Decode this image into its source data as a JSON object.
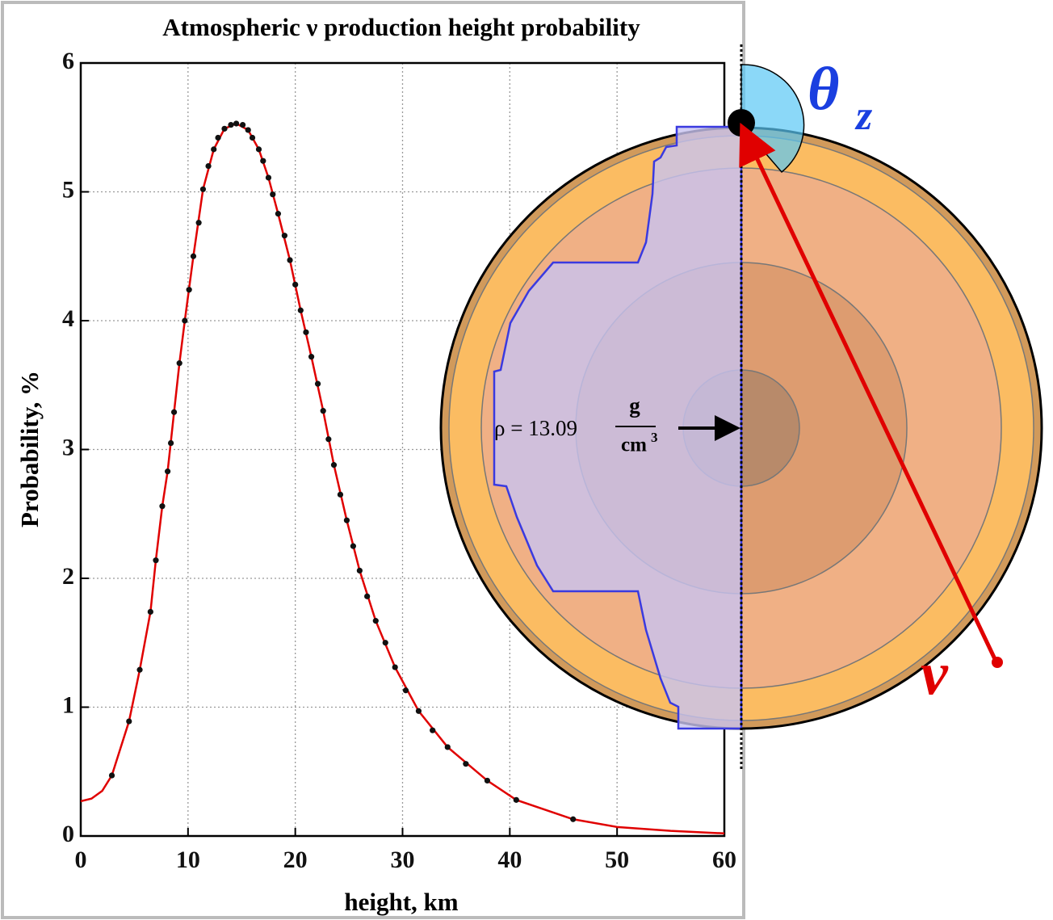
{
  "chart_data": {
    "type": "line",
    "title": "Atmospheric ν production height probability",
    "xlabel": "height, km",
    "ylabel": "Probability, %",
    "xlim": [
      0,
      60
    ],
    "ylim": [
      0,
      6
    ],
    "xticks": [
      0,
      10,
      20,
      30,
      40,
      50,
      60
    ],
    "yticks": [
      0,
      1,
      2,
      3,
      4,
      5,
      6
    ],
    "grid": true,
    "series": [
      {
        "style": "line",
        "color": "#e00000",
        "x": [
          0,
          1,
          2,
          2.9,
          4.5,
          5.5,
          6.5,
          7.0,
          7.6,
          8.1,
          8.7,
          9.2,
          9.7,
          10.5,
          11.4,
          12.4,
          13.4,
          14.5,
          15.6,
          16.6,
          17.5,
          18.4,
          19.5,
          20.5,
          21.5,
          22.6,
          23.6,
          24.8,
          26.0,
          27.5,
          29.3,
          31.5,
          34.2,
          37.9,
          40.6,
          45.9,
          50,
          55,
          60
        ],
        "values": [
          0.27,
          0.29,
          0.35,
          0.47,
          0.89,
          1.29,
          1.74,
          2.14,
          2.56,
          2.83,
          3.29,
          3.67,
          4.0,
          4.5,
          5.02,
          5.33,
          5.49,
          5.53,
          5.48,
          5.33,
          5.11,
          4.83,
          4.47,
          4.08,
          3.72,
          3.3,
          2.88,
          2.45,
          2.06,
          1.67,
          1.31,
          0.97,
          0.69,
          0.43,
          0.28,
          0.13,
          0.07,
          0.04,
          0.02
        ]
      },
      {
        "style": "points",
        "color": "#111111",
        "x": [
          2.9,
          4.5,
          5.5,
          6.5,
          7.0,
          7.6,
          8.1,
          8.4,
          8.7,
          9.2,
          9.7,
          10.1,
          10.5,
          11.0,
          11.4,
          11.9,
          12.4,
          12.8,
          13.4,
          14.0,
          14.5,
          15.1,
          15.6,
          16.0,
          16.6,
          17.0,
          17.5,
          17.9,
          18.4,
          19.0,
          19.5,
          20.0,
          20.5,
          21.0,
          21.5,
          22.1,
          22.6,
          23.1,
          23.6,
          24.2,
          24.8,
          25.4,
          26.0,
          26.7,
          27.5,
          28.4,
          29.3,
          30.3,
          31.5,
          32.8,
          34.2,
          35.9,
          37.9,
          40.6,
          45.9
        ],
        "values": [
          0.47,
          0.89,
          1.29,
          1.74,
          2.14,
          2.56,
          2.83,
          3.05,
          3.29,
          3.67,
          4.0,
          4.24,
          4.5,
          4.76,
          5.02,
          5.2,
          5.33,
          5.42,
          5.49,
          5.52,
          5.53,
          5.52,
          5.48,
          5.42,
          5.33,
          5.24,
          5.11,
          4.98,
          4.83,
          4.66,
          4.47,
          4.28,
          4.08,
          3.91,
          3.72,
          3.51,
          3.3,
          3.08,
          2.88,
          2.65,
          2.45,
          2.25,
          2.06,
          1.86,
          1.67,
          1.5,
          1.31,
          1.13,
          0.97,
          0.82,
          0.69,
          0.56,
          0.43,
          0.28,
          0.13
        ]
      }
    ]
  },
  "diagram": {
    "angle_label": {
      "symbol": "θ",
      "subscript": "z"
    },
    "neutrino_label": "ν",
    "density_label": {
      "lhs": "ρ = 13.09",
      "numerator": "g",
      "denominator": "cm",
      "exponent": "3"
    }
  }
}
